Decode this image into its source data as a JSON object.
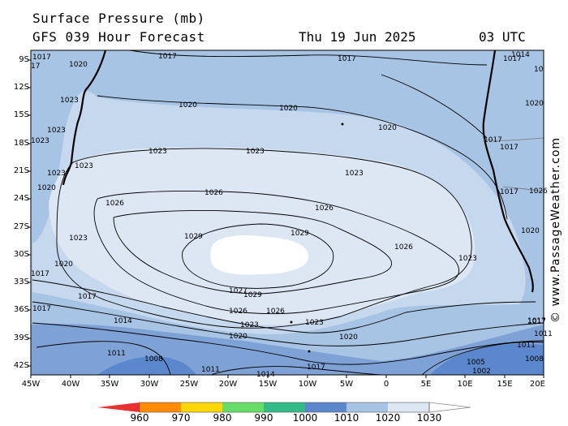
{
  "header": {
    "title": "Surface Pressure (mb)",
    "subtitle": "GFS 039 Hour Forecast",
    "date": "Thu 19 Jun 2025",
    "time": "03 UTC"
  },
  "credit": "© www.PassageWeather.com",
  "axes": {
    "latitudes": [
      "9S",
      "12S",
      "15S",
      "18S",
      "21S",
      "24S",
      "27S",
      "30S",
      "33S",
      "36S",
      "39S",
      "42S"
    ],
    "longitudes": [
      "45W",
      "40W",
      "35W",
      "30W",
      "25W",
      "20W",
      "15W",
      "10W",
      "5W",
      "0",
      "5E",
      "10E",
      "15E",
      "20E"
    ]
  },
  "legend": {
    "values": [
      "960",
      "970",
      "980",
      "990",
      "1000",
      "1010",
      "1020",
      "1030"
    ],
    "colors": [
      "#e83030",
      "#ff8c00",
      "#ffd700",
      "#66dd66",
      "#33bb88",
      "#5b88cc",
      "#a8c4e4",
      "#dde7f4",
      "#ffffff"
    ]
  },
  "map": {
    "palette": {
      "band_1005": "#5b88cc",
      "band_1010": "#7ea2d6",
      "band_1015": "#a8c4e4",
      "band_1020": "#c6d8ee",
      "band_1025": "#dde7f4",
      "band_1030": "#ffffff"
    },
    "isobar_labels": [
      "1017",
      "1020",
      "17",
      "1017",
      "1017",
      "1017",
      "1014",
      "1020",
      "1023",
      "1020",
      "1023",
      "1023",
      "1023",
      "1020",
      "1017",
      "1017",
      "1017",
      "1020",
      "1023",
      "1023",
      "1023",
      "1020",
      "1026",
      "1026",
      "1023",
      "1026",
      "1023",
      "1020",
      "1029",
      "1029",
      "1026",
      "1023",
      "1020",
      "1017",
      "1017",
      "1026",
      "1027",
      "1029",
      "1026",
      "1026",
      "1023",
      "1023",
      "1020",
      "1017",
      "1020",
      "1017",
      "1014",
      "1011",
      "1011",
      "1008",
      "1011",
      "1014",
      "1017",
      "1011",
      "1005",
      "1002",
      "1008",
      "1017",
      "10"
    ]
  }
}
